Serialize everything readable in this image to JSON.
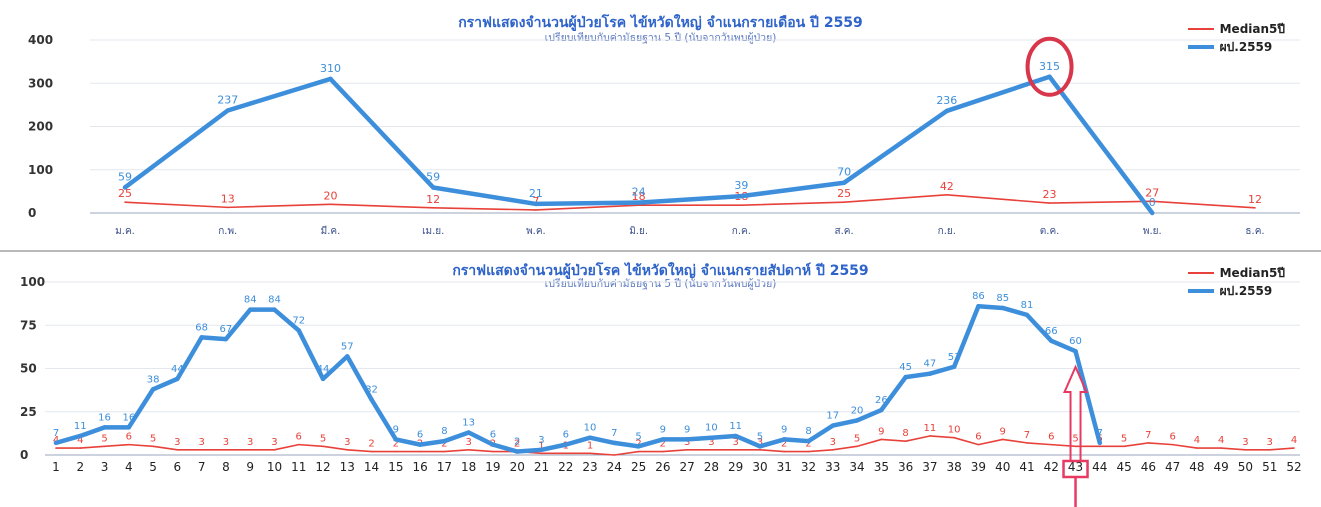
{
  "chart_data": [
    {
      "type": "line",
      "title": "กราฟแสดงจำนวนผู้ป่วยโรค ไข้หวัดใหญ่ จำแนกรายเดือน ปี 2559",
      "subtitle": "เปรียบเทียบกับค่ามัธยฐาน 5 ปี (นับจากวันพบผู้ป่วย)",
      "categories": [
        "ม.ค.",
        "ก.พ.",
        "มี.ค.",
        "เม.ย.",
        "พ.ค.",
        "มิ.ย.",
        "ก.ค.",
        "ส.ค.",
        "ก.ย.",
        "ต.ค.",
        "พ.ย.",
        "ธ.ค."
      ],
      "ylim": [
        0,
        400
      ],
      "yticks": [
        0,
        100,
        200,
        300,
        400
      ],
      "grid": true,
      "legend": "top-right",
      "series": [
        {
          "name": "Median5ปี",
          "color": "#e8413a",
          "values": [
            25,
            13,
            20,
            12,
            7,
            18,
            18,
            25,
            42,
            23,
            27,
            12
          ],
          "labels": [
            "25",
            "13",
            "20",
            "12",
            "7",
            "18",
            "18",
            "25",
            "42",
            "23",
            "27",
            "12"
          ]
        },
        {
          "name": "ผป.2559",
          "color": "#3d8fdc",
          "values": [
            59,
            237,
            310,
            59,
            21,
            24,
            39,
            70,
            236,
            315,
            0,
            null
          ],
          "labels": [
            "59",
            "237",
            "310",
            "59",
            "21",
            "24",
            "39",
            "70",
            "236",
            "315",
            "0",
            ""
          ]
        }
      ],
      "highlight_index": 9
    },
    {
      "type": "line",
      "title": "กราฟแสดงจำนวนผู้ป่วยโรค ไข้หวัดใหญ่ จำแนกรายสัปดาห์ ปี 2559",
      "subtitle": "เปรียบเทียบกับค่ามัธยฐาน 5 ปี (นับจากวันพบผู้ป่วย)",
      "categories": [
        "1",
        "2",
        "3",
        "4",
        "5",
        "6",
        "7",
        "8",
        "9",
        "10",
        "11",
        "12",
        "13",
        "14",
        "15",
        "16",
        "17",
        "18",
        "19",
        "20",
        "21",
        "22",
        "23",
        "24",
        "25",
        "26",
        "27",
        "28",
        "29",
        "30",
        "31",
        "32",
        "33",
        "34",
        "35",
        "36",
        "37",
        "38",
        "39",
        "40",
        "41",
        "42",
        "43",
        "44",
        "45",
        "46",
        "47",
        "48",
        "49",
        "50",
        "51",
        "52"
      ],
      "ylim": [
        0,
        100
      ],
      "yticks": [
        0,
        25,
        50,
        75,
        100
      ],
      "grid": true,
      "legend": "top-right",
      "series": [
        {
          "name": "Median5ปี",
          "color": "#e8413a",
          "values": [
            4,
            4,
            5,
            6,
            5,
            3,
            3,
            3,
            3,
            3,
            6,
            5,
            3,
            2,
            2,
            2,
            2,
            3,
            2,
            2,
            1,
            1,
            1,
            0,
            2,
            2,
            3,
            3,
            3,
            3,
            2,
            2,
            3,
            5,
            9,
            8,
            11,
            10,
            6,
            9,
            7,
            6,
            5,
            5,
            5,
            7,
            6,
            4,
            4,
            3,
            3,
            4
          ],
          "labels": [
            "4",
            "4",
            "5",
            "6",
            "5",
            "3",
            "3",
            "3",
            "3",
            "3",
            "6",
            "5",
            "3",
            "2",
            "2",
            "2",
            "2",
            "3",
            "2",
            "2",
            "1",
            "1",
            "1",
            "",
            "2",
            "2",
            "3",
            "3",
            "3",
            "3",
            "2",
            "2",
            "3",
            "5",
            "9",
            "8",
            "11",
            "10",
            "6",
            "9",
            "7",
            "6",
            "5",
            "5",
            "5",
            "7",
            "6",
            "4",
            "4",
            "3",
            "3",
            "4"
          ]
        },
        {
          "name": "ผป.2559",
          "color": "#3d8fdc",
          "values": [
            7,
            11,
            16,
            16,
            38,
            44,
            68,
            67,
            84,
            84,
            72,
            44,
            57,
            32,
            9,
            6,
            8,
            13,
            6,
            2,
            3,
            6,
            10,
            7,
            5,
            9,
            9,
            10,
            11,
            5,
            9,
            8,
            17,
            20,
            26,
            45,
            47,
            51,
            86,
            85,
            81,
            66,
            60,
            7,
            null,
            null,
            null,
            null,
            null,
            null,
            null,
            null
          ],
          "labels": [
            "7",
            "11",
            "16",
            "16",
            "38",
            "44",
            "68",
            "67",
            "84",
            "84",
            "72",
            "44",
            "57",
            "32",
            "9",
            "6",
            "8",
            "13",
            "6",
            "2",
            "3",
            "6",
            "10",
            "7",
            "5",
            "9",
            "9",
            "10",
            "11",
            "5",
            "9",
            "8",
            "17",
            "20",
            "26",
            "45",
            "47",
            "51",
            "86",
            "85",
            "81",
            "66",
            "60",
            "7",
            "",
            "",
            "",
            "",
            "",
            "",
            "",
            ""
          ]
        }
      ],
      "highlight_index": 42
    }
  ]
}
